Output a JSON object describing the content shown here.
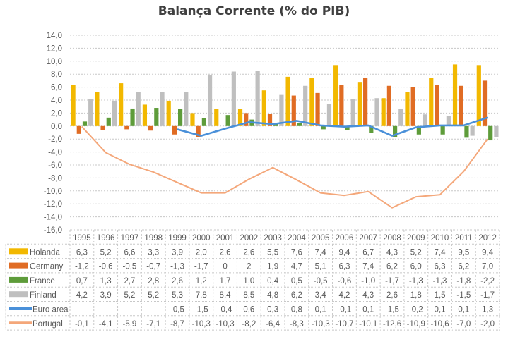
{
  "chart_data": {
    "type": "bar",
    "title": "Balança Corrente (% do PIB)",
    "xlabel": "",
    "ylabel": "",
    "ylim": [
      -16,
      14
    ],
    "ytick_step": 2,
    "yticks": [
      "14,0",
      "12,0",
      "10,0",
      "8,0",
      "6,0",
      "4,0",
      "2,0",
      "0,0",
      "-2,0",
      "-4,0",
      "-6,0",
      "-8,0",
      "-10,0",
      "-12,0",
      "-14,0",
      "-16,0"
    ],
    "grid": true,
    "legend_position": "data-table",
    "categories": [
      "1995",
      "1996",
      "1997",
      "1998",
      "1999",
      "2000",
      "2001",
      "2002",
      "2003",
      "2004",
      "2005",
      "2006",
      "2007",
      "2008",
      "2009",
      "2010",
      "2011",
      "2012"
    ],
    "series": [
      {
        "name": "Holanda",
        "kind": "bar",
        "color": "#F2B800",
        "values": [
          6.3,
          5.2,
          6.6,
          3.3,
          3.9,
          2.0,
          2.6,
          2.6,
          5.5,
          7.6,
          7.4,
          9.4,
          6.7,
          4.3,
          5.2,
          7.4,
          9.5,
          9.4
        ],
        "labels": [
          "6,3",
          "5,2",
          "6,6",
          "3,3",
          "3,9",
          "2,0",
          "2,6",
          "2,6",
          "5,5",
          "7,6",
          "7,4",
          "9,4",
          "6,7",
          "4,3",
          "5,2",
          "7,4",
          "9,5",
          "9,4"
        ]
      },
      {
        "name": "Germany",
        "kind": "bar",
        "color": "#E06C24",
        "values": [
          -1.2,
          -0.6,
          -0.5,
          -0.7,
          -1.3,
          -1.7,
          0,
          2,
          1.9,
          4.7,
          5.1,
          6.3,
          7.4,
          6.2,
          6.0,
          6.3,
          6.2,
          7.0
        ],
        "labels": [
          "-1,2",
          "-0,6",
          "-0,5",
          "-0,7",
          "-1,3",
          "-1,7",
          "0",
          "2",
          "1,9",
          "4,7",
          "5,1",
          "6,3",
          "7,4",
          "6,2",
          "6,0",
          "6,3",
          "6,2",
          "7,0"
        ]
      },
      {
        "name": "France",
        "kind": "bar",
        "color": "#5E9C3A",
        "values": [
          0.7,
          1.3,
          2.7,
          2.8,
          2.6,
          1.2,
          1.7,
          1.0,
          0.4,
          0.5,
          -0.5,
          -0.6,
          -1.0,
          -1.7,
          -1.3,
          -1.3,
          -1.8,
          -2.2
        ],
        "labels": [
          "0,7",
          "1,3",
          "2,7",
          "2,8",
          "2,6",
          "1,2",
          "1,7",
          "1,0",
          "0,4",
          "0,5",
          "-0,5",
          "-0,6",
          "-1,0",
          "-1,7",
          "-1,3",
          "-1,3",
          "-1,8",
          "-2,2"
        ]
      },
      {
        "name": "Finland",
        "kind": "bar",
        "color": "#BFBFBF",
        "values": [
          4.2,
          3.9,
          5.2,
          5.2,
          5.3,
          7.8,
          8.4,
          8.5,
          4.8,
          6.2,
          3.4,
          4.2,
          4.3,
          2.6,
          1.8,
          1.5,
          -1.5,
          -1.7
        ],
        "labels": [
          "4,2",
          "3,9",
          "5,2",
          "5,2",
          "5,3",
          "7,8",
          "8,4",
          "8,5",
          "4,8",
          "6,2",
          "3,4",
          "4,2",
          "4,3",
          "2,6",
          "1,8",
          "1,5",
          "-1,5",
          "-1,7"
        ]
      },
      {
        "name": "Euro area",
        "kind": "line",
        "color": "#4A90D9",
        "values": [
          null,
          null,
          null,
          null,
          -0.5,
          -1.5,
          -0.4,
          0.6,
          0.3,
          0.8,
          0.1,
          -0.1,
          0.1,
          -1.5,
          -0.2,
          0.1,
          0.1,
          1.3
        ],
        "labels": [
          "",
          "",
          "",
          "",
          "-0,5",
          "-1,5",
          "-0,4",
          "0,6",
          "0,3",
          "0,8",
          "0,1",
          "-0,1",
          "0,1",
          "-1,5",
          "-0,2",
          "0,1",
          "0,1",
          "1,3"
        ]
      },
      {
        "name": "Portugal",
        "kind": "line",
        "color": "#F4A77A",
        "values": [
          -0.1,
          -4.1,
          -5.9,
          -7.1,
          -8.7,
          -10.3,
          -10.3,
          -8.2,
          -6.4,
          -8.3,
          -10.3,
          -10.7,
          -10.1,
          -12.6,
          -10.9,
          -10.6,
          -7.0,
          -2.0
        ],
        "labels": [
          "-0,1",
          "-4,1",
          "-5,9",
          "-7,1",
          "-8,7",
          "-10,3",
          "-10,3",
          "-8,2",
          "-6,4",
          "-8,3",
          "-10,3",
          "-10,7",
          "-10,1",
          "-12,6",
          "-10,9",
          "-10,6",
          "-7,0",
          "-2,0"
        ]
      }
    ]
  }
}
